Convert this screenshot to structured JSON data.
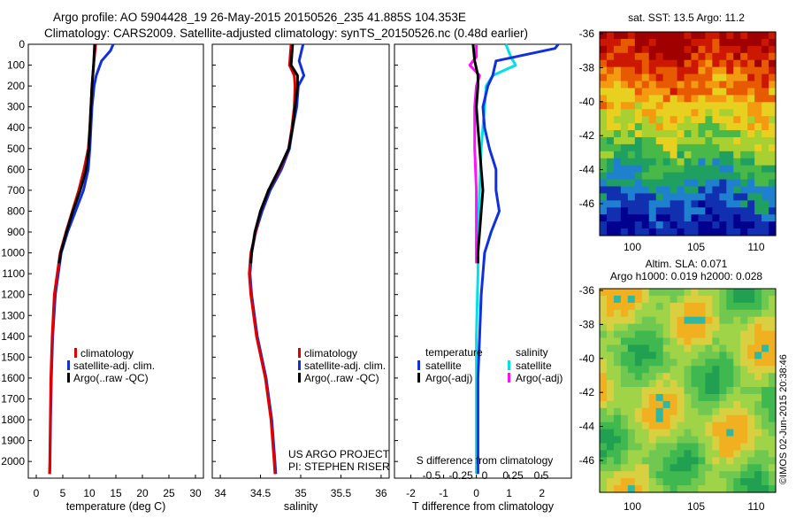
{
  "header": {
    "line1": "Argo profile: AO 5904428_19 26-May-2015 20150526_235 41.885S 104.353E",
    "line2": "Climatology: CARS2009. Satellite-adjusted climatology: synTS_20150526.nc (0.48d earlier)"
  },
  "colors": {
    "climatology": "#e00000",
    "satellite": "#1030e0",
    "argo": "#000000",
    "sat_salinity": "#00e0e8",
    "argo_salinity": "#ff10ff"
  },
  "depth_axis": {
    "ticks": [
      0,
      100,
      200,
      300,
      400,
      500,
      600,
      700,
      800,
      900,
      1000,
      1100,
      1200,
      1300,
      1400,
      1500,
      1600,
      1700,
      1800,
      1900,
      2000
    ],
    "range": [
      0,
      2080
    ],
    "inverted": true
  },
  "panels": {
    "temperature": {
      "xlabel": "temperature (deg C)",
      "xlim": [
        -1.5,
        31.5
      ],
      "xticks": [
        0,
        5,
        10,
        15,
        20,
        25,
        30
      ],
      "legend": [
        "climatology",
        "satellite-adj. clim.",
        "Argo(..raw -QC)"
      ],
      "series": {
        "climatology": {
          "depth": [
            0,
            100,
            200,
            300,
            400,
            500,
            600,
            700,
            800,
            900,
            1000,
            1200,
            1400,
            1600,
            1800,
            2000,
            2060
          ],
          "value": [
            11.2,
            10.8,
            10.5,
            10.3,
            10.1,
            9.8,
            9.0,
            8.0,
            6.8,
            5.6,
            4.5,
            3.4,
            3.0,
            2.75,
            2.65,
            2.55,
            2.5
          ]
        },
        "satellite": {
          "depth": [
            0,
            30,
            80,
            150,
            200,
            300,
            400,
            500,
            600,
            700,
            800,
            900,
            1000,
            1200,
            1400,
            1600,
            1800,
            2000,
            2060
          ],
          "value": [
            14.5,
            14.0,
            12.3,
            11.3,
            10.9,
            10.5,
            10.3,
            10.1,
            9.8,
            8.9,
            7.4,
            5.9,
            4.7,
            3.6,
            3.1,
            2.85,
            2.7,
            2.6,
            2.55
          ]
        },
        "argo": {
          "depth": [
            0,
            100,
            200,
            300,
            400,
            500,
            600,
            700,
            800,
            900,
            1000,
            1050
          ],
          "value": [
            11.0,
            10.8,
            10.5,
            10.3,
            10.1,
            9.9,
            9.4,
            8.3,
            6.9,
            5.7,
            4.6,
            4.3
          ]
        }
      }
    },
    "salinity": {
      "xlabel": "salinity",
      "xlim": [
        33.9,
        36.1
      ],
      "xticks": [
        34,
        34.5,
        35,
        35.5,
        36
      ],
      "xtick_labels": [
        "34",
        "34.5",
        "35",
        "35.5",
        "36"
      ],
      "legend": [
        "climatology",
        "satellite-adj. clim.",
        "Argo(..raw -QC)"
      ],
      "credit1": "US ARGO PROJECT",
      "credit2": "PI: STEPHEN RISER",
      "series": {
        "climatology": {
          "depth": [
            0,
            100,
            150,
            200,
            300,
            400,
            500,
            600,
            700,
            800,
            900,
            1000,
            1100,
            1200,
            1400,
            1600,
            1800,
            2000,
            2060
          ],
          "value": [
            34.88,
            34.86,
            34.92,
            34.93,
            34.92,
            34.89,
            34.85,
            34.74,
            34.6,
            34.5,
            34.44,
            34.38,
            34.36,
            34.38,
            34.45,
            34.56,
            34.63,
            34.67,
            34.68
          ]
        },
        "satellite": {
          "depth": [
            0,
            80,
            150,
            200,
            300,
            400,
            500,
            600,
            700,
            800,
            900,
            1000,
            1100,
            1200,
            1400,
            1600,
            1800,
            2000,
            2060
          ],
          "value": [
            35.03,
            34.98,
            35.04,
            34.97,
            34.95,
            34.9,
            34.86,
            34.76,
            34.62,
            34.52,
            34.44,
            34.39,
            34.37,
            34.39,
            34.46,
            34.57,
            34.64,
            34.68,
            34.69
          ]
        },
        "argo": {
          "depth": [
            0,
            100,
            150,
            200,
            300,
            400,
            500,
            600,
            700,
            800,
            900,
            1000,
            1050
          ],
          "value": [
            34.9,
            34.88,
            34.96,
            34.96,
            34.93,
            34.9,
            34.85,
            34.73,
            34.6,
            34.5,
            34.43,
            34.39,
            34.38
          ]
        }
      }
    },
    "difference": {
      "xlabel": "T difference from climatology",
      "xlim": [
        -2.5,
        2.9
      ],
      "xticks": [
        -2,
        -1,
        0,
        1,
        2
      ],
      "top_label": "S difference from climatology",
      "top_ticks": [
        "-0.5",
        "-0.25",
        "0",
        "0.25",
        "0.5"
      ],
      "legend_temperature": {
        "title": "temperature",
        "items": [
          "satellite",
          "Argo(-adj)"
        ]
      },
      "legend_salinity": {
        "title": "salinity",
        "items": [
          "satellite",
          "Argo(-adj)"
        ]
      },
      "series": {
        "t_satellite": {
          "depth": [
            0,
            20,
            80,
            150,
            200,
            300,
            400,
            500,
            600,
            700,
            800,
            900,
            1000,
            1200,
            1400,
            1600,
            1800,
            2000,
            2060
          ],
          "value": [
            2.5,
            2.4,
            0.6,
            0.5,
            0.35,
            0.2,
            0.25,
            0.4,
            0.6,
            0.6,
            0.7,
            0.45,
            0.25,
            0.15,
            0.1,
            0.05,
            0.05,
            0.05,
            0.05
          ]
        },
        "t_argo": {
          "depth": [
            0,
            80,
            150,
            200,
            300,
            400,
            500,
            600,
            700,
            800,
            900,
            1000,
            1050
          ],
          "value": [
            -0.1,
            -0.05,
            0.05,
            0.05,
            0.0,
            0.05,
            0.1,
            0.15,
            0.2,
            0.15,
            0.1,
            0.05,
            0.05
          ]
        },
        "s_satellite": {
          "depth": [
            0,
            60,
            100,
            150,
            200,
            300,
            500,
            700,
            900,
            1100,
            1400,
            1800,
            2060
          ],
          "value": [
            0.9,
            1.05,
            1.2,
            0.5,
            0.3,
            0.25,
            0.15,
            0.1,
            0.05,
            0.05,
            0.0,
            0.0,
            0.0
          ]
        },
        "s_argo": {
          "depth": [
            0,
            60,
            100,
            150,
            200,
            300,
            500,
            700,
            900,
            1050
          ],
          "value": [
            0.0,
            0.0,
            -0.2,
            0.1,
            0.0,
            -0.05,
            -0.05,
            0.0,
            0.0,
            0.0
          ]
        }
      }
    }
  },
  "maps": {
    "sst": {
      "title": "sat. SST: 13.5 Argo: 11.2",
      "yticks": [
        "-36",
        "-38",
        "-40",
        "-42",
        "-44",
        "-46"
      ],
      "xticks": [
        "100",
        "105",
        "110"
      ]
    },
    "sla": {
      "title1": "Altim. SLA: 0.071",
      "title2": "Argo h1000: 0.019 h2000: 0.028",
      "yticks": [
        "-36",
        "-38",
        "-40",
        "-42",
        "-44",
        "-46"
      ],
      "xticks": [
        "100",
        "105",
        "110"
      ]
    }
  },
  "footer": {
    "stamp": "©IMOS 02-Jun-2015 20:38:46"
  }
}
